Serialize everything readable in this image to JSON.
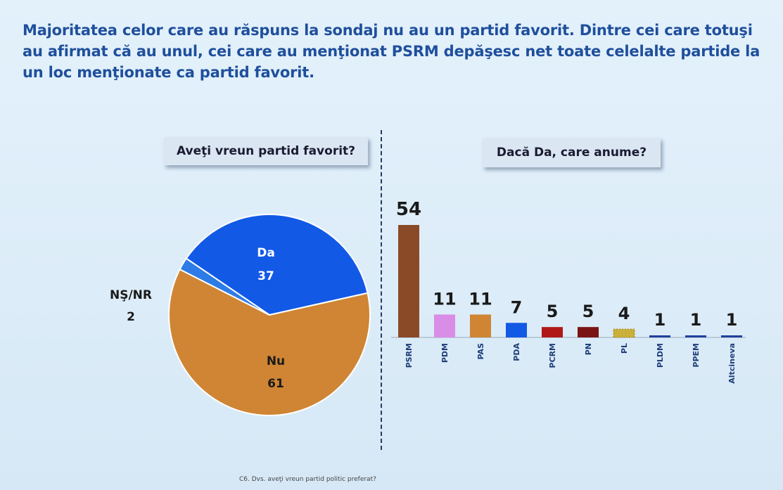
{
  "headline": "Majoritatea celor care au răspuns la sondaj nu au un partid favorit. Dintre cei care totuşi au afirmat că au unul, cei care au menţionat PSRM depăşesc net toate celelalte partide la un loc menţionate ca partid favorit.",
  "footnote": "C6. Dvs. aveţi vreun partid politic preferat?",
  "chart_data": [
    {
      "type": "pie",
      "title": "Aveţi vreun partid favorit?",
      "slices": [
        {
          "label": "Da",
          "value": 37,
          "color": "#1259e6"
        },
        {
          "label": "Nu",
          "value": 61,
          "color": "#cf8533"
        },
        {
          "label": "NŞ/NR",
          "value": 2,
          "color": "#2d7be6"
        }
      ]
    },
    {
      "type": "bar",
      "title": "Dacă Da, care anume?",
      "categories": [
        "PSRM",
        "PDM",
        "PAS",
        "PDA",
        "PCRM",
        "PN",
        "PL",
        "PLDM",
        "PPEM",
        "Altcineva"
      ],
      "values": [
        54,
        11,
        11,
        7,
        5,
        5,
        4,
        1,
        1,
        1
      ],
      "colors": [
        "#8a4a27",
        "#d98de6",
        "#cf8533",
        "#1259e6",
        "#b01818",
        "#7a1414",
        "#c9b03a",
        "#1e3f9a",
        "#1e3f9a",
        "#1e3f9a"
      ],
      "ylim": [
        0,
        54
      ]
    }
  ]
}
